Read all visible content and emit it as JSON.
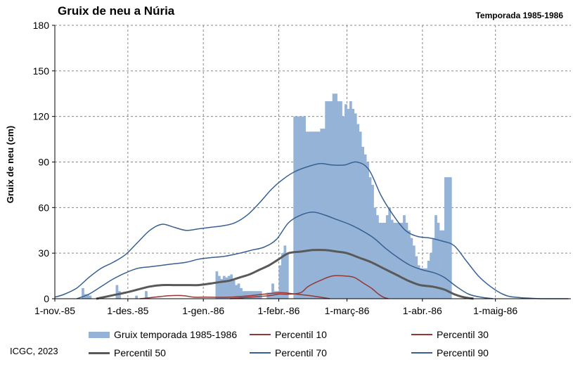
{
  "header": {
    "title": "Gruix de neu a Núria",
    "subtitle": "Temporada 1985-1986"
  },
  "footer": {
    "credit": "ICGC, 2023"
  },
  "colors": {
    "bars": "#95b3d7",
    "p10": "#953735",
    "p30": "#953735",
    "p50": "#595959",
    "p70": "#376092",
    "p90": "#376092",
    "grid": "#888888",
    "axis": "#000000"
  },
  "chart_data": {
    "type": "bar",
    "ylabel": "Gruix de neu (cm)",
    "xlabel": "",
    "ylim": [
      0,
      180
    ],
    "yticks": [
      0,
      30,
      60,
      90,
      120,
      150,
      180
    ],
    "xlim": [
      "1985-11-01",
      "1986-05-31"
    ],
    "xticks": [
      {
        "date": "1985-11-01",
        "label": "1-nov.-85"
      },
      {
        "date": "1985-12-01",
        "label": "1-des.-85"
      },
      {
        "date": "1986-01-01",
        "label": "1-gen.-86"
      },
      {
        "date": "1986-02-01",
        "label": "1-febr.-86"
      },
      {
        "date": "1986-03-01",
        "label": "1-març-86"
      },
      {
        "date": "1986-04-01",
        "label": "1-abr.-86"
      },
      {
        "date": "1986-05-01",
        "label": "1-maig-86"
      }
    ],
    "grid": "dashed, vertical and horizontal",
    "legend_position": "bottom",
    "series": [
      {
        "name": "Gruix temporada 1985-1986",
        "kind": "bar",
        "points": [
          [
            "1985-11-12",
            7
          ],
          [
            "1985-11-13",
            3
          ],
          [
            "1985-11-14",
            3
          ],
          [
            "1985-11-15",
            2
          ],
          [
            "1985-11-26",
            9
          ],
          [
            "1985-11-27",
            5
          ],
          [
            "1985-12-04",
            2
          ],
          [
            "1985-12-08",
            5
          ],
          [
            "1986-01-06",
            18
          ],
          [
            "1986-01-07",
            15
          ],
          [
            "1986-01-08",
            13
          ],
          [
            "1986-01-09",
            15
          ],
          [
            "1986-01-10",
            14
          ],
          [
            "1986-01-11",
            15
          ],
          [
            "1986-01-12",
            16
          ],
          [
            "1986-01-13",
            12
          ],
          [
            "1986-01-14",
            9
          ],
          [
            "1986-01-15",
            10
          ],
          [
            "1986-01-16",
            7
          ],
          [
            "1986-01-17",
            5
          ],
          [
            "1986-01-18",
            5
          ],
          [
            "1986-01-19",
            5
          ],
          [
            "1986-01-20",
            5
          ],
          [
            "1986-01-21",
            5
          ],
          [
            "1986-01-22",
            5
          ],
          [
            "1986-01-23",
            5
          ],
          [
            "1986-01-24",
            5
          ],
          [
            "1986-01-27",
            4
          ],
          [
            "1986-01-28",
            4
          ],
          [
            "1986-01-29",
            10
          ],
          [
            "1986-01-30",
            5
          ],
          [
            "1986-01-31",
            5
          ],
          [
            "1986-02-01",
            22
          ],
          [
            "1986-02-02",
            30
          ],
          [
            "1986-02-03",
            35
          ],
          [
            "1986-02-04",
            30
          ],
          [
            "1986-02-07",
            120
          ],
          [
            "1986-02-08",
            120
          ],
          [
            "1986-02-09",
            120
          ],
          [
            "1986-02-10",
            120
          ],
          [
            "1986-02-11",
            120
          ],
          [
            "1986-02-12",
            110
          ],
          [
            "1986-02-13",
            110
          ],
          [
            "1986-02-14",
            110
          ],
          [
            "1986-02-15",
            110
          ],
          [
            "1986-02-16",
            110
          ],
          [
            "1986-02-17",
            110
          ],
          [
            "1986-02-18",
            112
          ],
          [
            "1986-02-19",
            112
          ],
          [
            "1986-02-20",
            130
          ],
          [
            "1986-02-21",
            130
          ],
          [
            "1986-02-22",
            130
          ],
          [
            "1986-02-23",
            135
          ],
          [
            "1986-02-24",
            135
          ],
          [
            "1986-02-25",
            130
          ],
          [
            "1986-02-26",
            130
          ],
          [
            "1986-02-27",
            120
          ],
          [
            "1986-02-28",
            128
          ],
          [
            "1986-03-01",
            125
          ],
          [
            "1986-03-02",
            130
          ],
          [
            "1986-03-03",
            125
          ],
          [
            "1986-03-04",
            122
          ],
          [
            "1986-03-05",
            115
          ],
          [
            "1986-03-06",
            110
          ],
          [
            "1986-03-07",
            100
          ],
          [
            "1986-03-08",
            95
          ],
          [
            "1986-03-09",
            90
          ],
          [
            "1986-03-10",
            80
          ],
          [
            "1986-03-11",
            75
          ],
          [
            "1986-03-12",
            60
          ],
          [
            "1986-03-13",
            55
          ],
          [
            "1986-03-14",
            50
          ],
          [
            "1986-03-15",
            50
          ],
          [
            "1986-03-16",
            50
          ],
          [
            "1986-03-17",
            55
          ],
          [
            "1986-03-18",
            60
          ],
          [
            "1986-03-19",
            52
          ],
          [
            "1986-03-20",
            50
          ],
          [
            "1986-03-21",
            50
          ],
          [
            "1986-03-22",
            50
          ],
          [
            "1986-03-23",
            50
          ],
          [
            "1986-03-24",
            55
          ],
          [
            "1986-03-25",
            50
          ],
          [
            "1986-03-26",
            45
          ],
          [
            "1986-03-27",
            40
          ],
          [
            "1986-03-28",
            35
          ],
          [
            "1986-03-29",
            28
          ],
          [
            "1986-03-30",
            22
          ],
          [
            "1986-03-31",
            20
          ],
          [
            "1986-04-01",
            20
          ],
          [
            "1986-04-02",
            20
          ],
          [
            "1986-04-03",
            25
          ],
          [
            "1986-04-04",
            30
          ],
          [
            "1986-04-05",
            40
          ],
          [
            "1986-04-06",
            55
          ],
          [
            "1986-04-07",
            50
          ],
          [
            "1986-04-08",
            45
          ],
          [
            "1986-04-09",
            45
          ],
          [
            "1986-04-10",
            80
          ],
          [
            "1986-04-11",
            80
          ],
          [
            "1986-04-12",
            80
          ]
        ]
      },
      {
        "name": "Percentil 10",
        "kind": "line",
        "colorKey": "p10",
        "width": 1.5,
        "points": [
          [
            "1986-01-12",
            0
          ],
          [
            "1986-01-20",
            1
          ],
          [
            "1986-01-28",
            2
          ],
          [
            "1986-02-01",
            3
          ],
          [
            "1986-02-05",
            3
          ],
          [
            "1986-02-10",
            4
          ],
          [
            "1986-02-13",
            8
          ],
          [
            "1986-02-18",
            12
          ],
          [
            "1986-02-23",
            15
          ],
          [
            "1986-02-28",
            15
          ],
          [
            "1986-03-04",
            14
          ],
          [
            "1986-03-08",
            10
          ],
          [
            "1986-03-11",
            7
          ],
          [
            "1986-03-14",
            3
          ],
          [
            "1986-03-16",
            1
          ],
          [
            "1986-03-18",
            0
          ]
        ]
      },
      {
        "name": "Percentil 30",
        "kind": "line",
        "colorKey": "p30",
        "width": 1.5,
        "points": [
          [
            "1985-12-06",
            0
          ],
          [
            "1985-12-12",
            1
          ],
          [
            "1985-12-18",
            2
          ],
          [
            "1985-12-24",
            2
          ],
          [
            "1985-12-28",
            1
          ],
          [
            "1986-01-02",
            1
          ],
          [
            "1986-01-12",
            1
          ],
          [
            "1986-01-20",
            2
          ],
          [
            "1986-01-26",
            3
          ],
          [
            "1986-02-02",
            4
          ],
          [
            "1986-02-08",
            3
          ],
          [
            "1986-02-14",
            2
          ],
          [
            "1986-02-18",
            1
          ],
          [
            "1986-02-22",
            0
          ]
        ]
      },
      {
        "name": "Percentil 50",
        "kind": "line",
        "colorKey": "p50",
        "width": 3,
        "points": [
          [
            "1985-11-18",
            0
          ],
          [
            "1985-11-24",
            2
          ],
          [
            "1985-11-30",
            4
          ],
          [
            "1985-12-05",
            6
          ],
          [
            "1985-12-10",
            8
          ],
          [
            "1985-12-15",
            9
          ],
          [
            "1985-12-20",
            9
          ],
          [
            "1985-12-25",
            9
          ],
          [
            "1985-12-30",
            9
          ],
          [
            "1986-01-04",
            10
          ],
          [
            "1986-01-08",
            11
          ],
          [
            "1986-01-12",
            12
          ],
          [
            "1986-01-16",
            14
          ],
          [
            "1986-01-20",
            16
          ],
          [
            "1986-01-24",
            19
          ],
          [
            "1986-01-28",
            22
          ],
          [
            "1986-02-01",
            26
          ],
          [
            "1986-02-05",
            30
          ],
          [
            "1986-02-10",
            31
          ],
          [
            "1986-02-15",
            32
          ],
          [
            "1986-02-20",
            32
          ],
          [
            "1986-02-25",
            31
          ],
          [
            "1986-03-01",
            30
          ],
          [
            "1986-03-06",
            27
          ],
          [
            "1986-03-11",
            24
          ],
          [
            "1986-03-16",
            20
          ],
          [
            "1986-03-21",
            16
          ],
          [
            "1986-03-26",
            12
          ],
          [
            "1986-03-31",
            9
          ],
          [
            "1986-04-05",
            8
          ],
          [
            "1986-04-10",
            6
          ],
          [
            "1986-04-14",
            3
          ],
          [
            "1986-04-18",
            1
          ],
          [
            "1986-04-22",
            0
          ]
        ]
      },
      {
        "name": "Percentil 70",
        "kind": "line",
        "colorKey": "p70",
        "width": 1.5,
        "points": [
          [
            "1985-11-10",
            0
          ],
          [
            "1985-11-15",
            3
          ],
          [
            "1985-11-20",
            8
          ],
          [
            "1985-11-25",
            13
          ],
          [
            "1985-11-30",
            17
          ],
          [
            "1985-12-05",
            20
          ],
          [
            "1985-12-10",
            21
          ],
          [
            "1985-12-15",
            22
          ],
          [
            "1985-12-20",
            23
          ],
          [
            "1985-12-25",
            24
          ],
          [
            "1985-12-30",
            26
          ],
          [
            "1986-01-04",
            27
          ],
          [
            "1986-01-10",
            28
          ],
          [
            "1986-01-16",
            30
          ],
          [
            "1986-01-21",
            32
          ],
          [
            "1986-01-26",
            34
          ],
          [
            "1986-01-31",
            39
          ],
          [
            "1986-02-05",
            50
          ],
          [
            "1986-02-10",
            55
          ],
          [
            "1986-02-15",
            57
          ],
          [
            "1986-02-20",
            55
          ],
          [
            "1986-02-25",
            52
          ],
          [
            "1986-03-02",
            49
          ],
          [
            "1986-03-07",
            45
          ],
          [
            "1986-03-12",
            40
          ],
          [
            "1986-03-17",
            33
          ],
          [
            "1986-03-22",
            27
          ],
          [
            "1986-03-27",
            22
          ],
          [
            "1986-04-01",
            19
          ],
          [
            "1986-04-06",
            17
          ],
          [
            "1986-04-10",
            14
          ],
          [
            "1986-04-15",
            8
          ],
          [
            "1986-04-20",
            3
          ],
          [
            "1986-04-25",
            1
          ],
          [
            "1986-04-30",
            0
          ]
        ]
      },
      {
        "name": "Percentil 90",
        "kind": "line",
        "colorKey": "p90",
        "width": 1.5,
        "points": [
          [
            "1985-11-01",
            1
          ],
          [
            "1985-11-05",
            3
          ],
          [
            "1985-11-10",
            7
          ],
          [
            "1985-11-15",
            14
          ],
          [
            "1985-11-20",
            20
          ],
          [
            "1985-11-25",
            24
          ],
          [
            "1985-11-30",
            29
          ],
          [
            "1985-12-05",
            37
          ],
          [
            "1985-12-10",
            45
          ],
          [
            "1985-12-15",
            49
          ],
          [
            "1985-12-20",
            47
          ],
          [
            "1985-12-25",
            45
          ],
          [
            "1985-12-30",
            46
          ],
          [
            "1986-01-04",
            47
          ],
          [
            "1986-01-09",
            48
          ],
          [
            "1986-01-14",
            50
          ],
          [
            "1986-01-19",
            55
          ],
          [
            "1986-01-24",
            63
          ],
          [
            "1986-01-29",
            72
          ],
          [
            "1986-02-03",
            79
          ],
          [
            "1986-02-08",
            84
          ],
          [
            "1986-02-13",
            87
          ],
          [
            "1986-02-18",
            89
          ],
          [
            "1986-02-23",
            88
          ],
          [
            "1986-02-28",
            88
          ],
          [
            "1986-03-05",
            90
          ],
          [
            "1986-03-10",
            85
          ],
          [
            "1986-03-15",
            68
          ],
          [
            "1986-03-20",
            55
          ],
          [
            "1986-03-25",
            45
          ],
          [
            "1986-03-30",
            41
          ],
          [
            "1986-04-04",
            40
          ],
          [
            "1986-04-09",
            38
          ],
          [
            "1986-04-14",
            35
          ],
          [
            "1986-04-19",
            25
          ],
          [
            "1986-04-24",
            15
          ],
          [
            "1986-04-29",
            8
          ],
          [
            "1986-05-04",
            3
          ],
          [
            "1986-05-09",
            1
          ],
          [
            "1986-05-20",
            0
          ],
          [
            "1986-05-31",
            0
          ]
        ]
      }
    ]
  }
}
